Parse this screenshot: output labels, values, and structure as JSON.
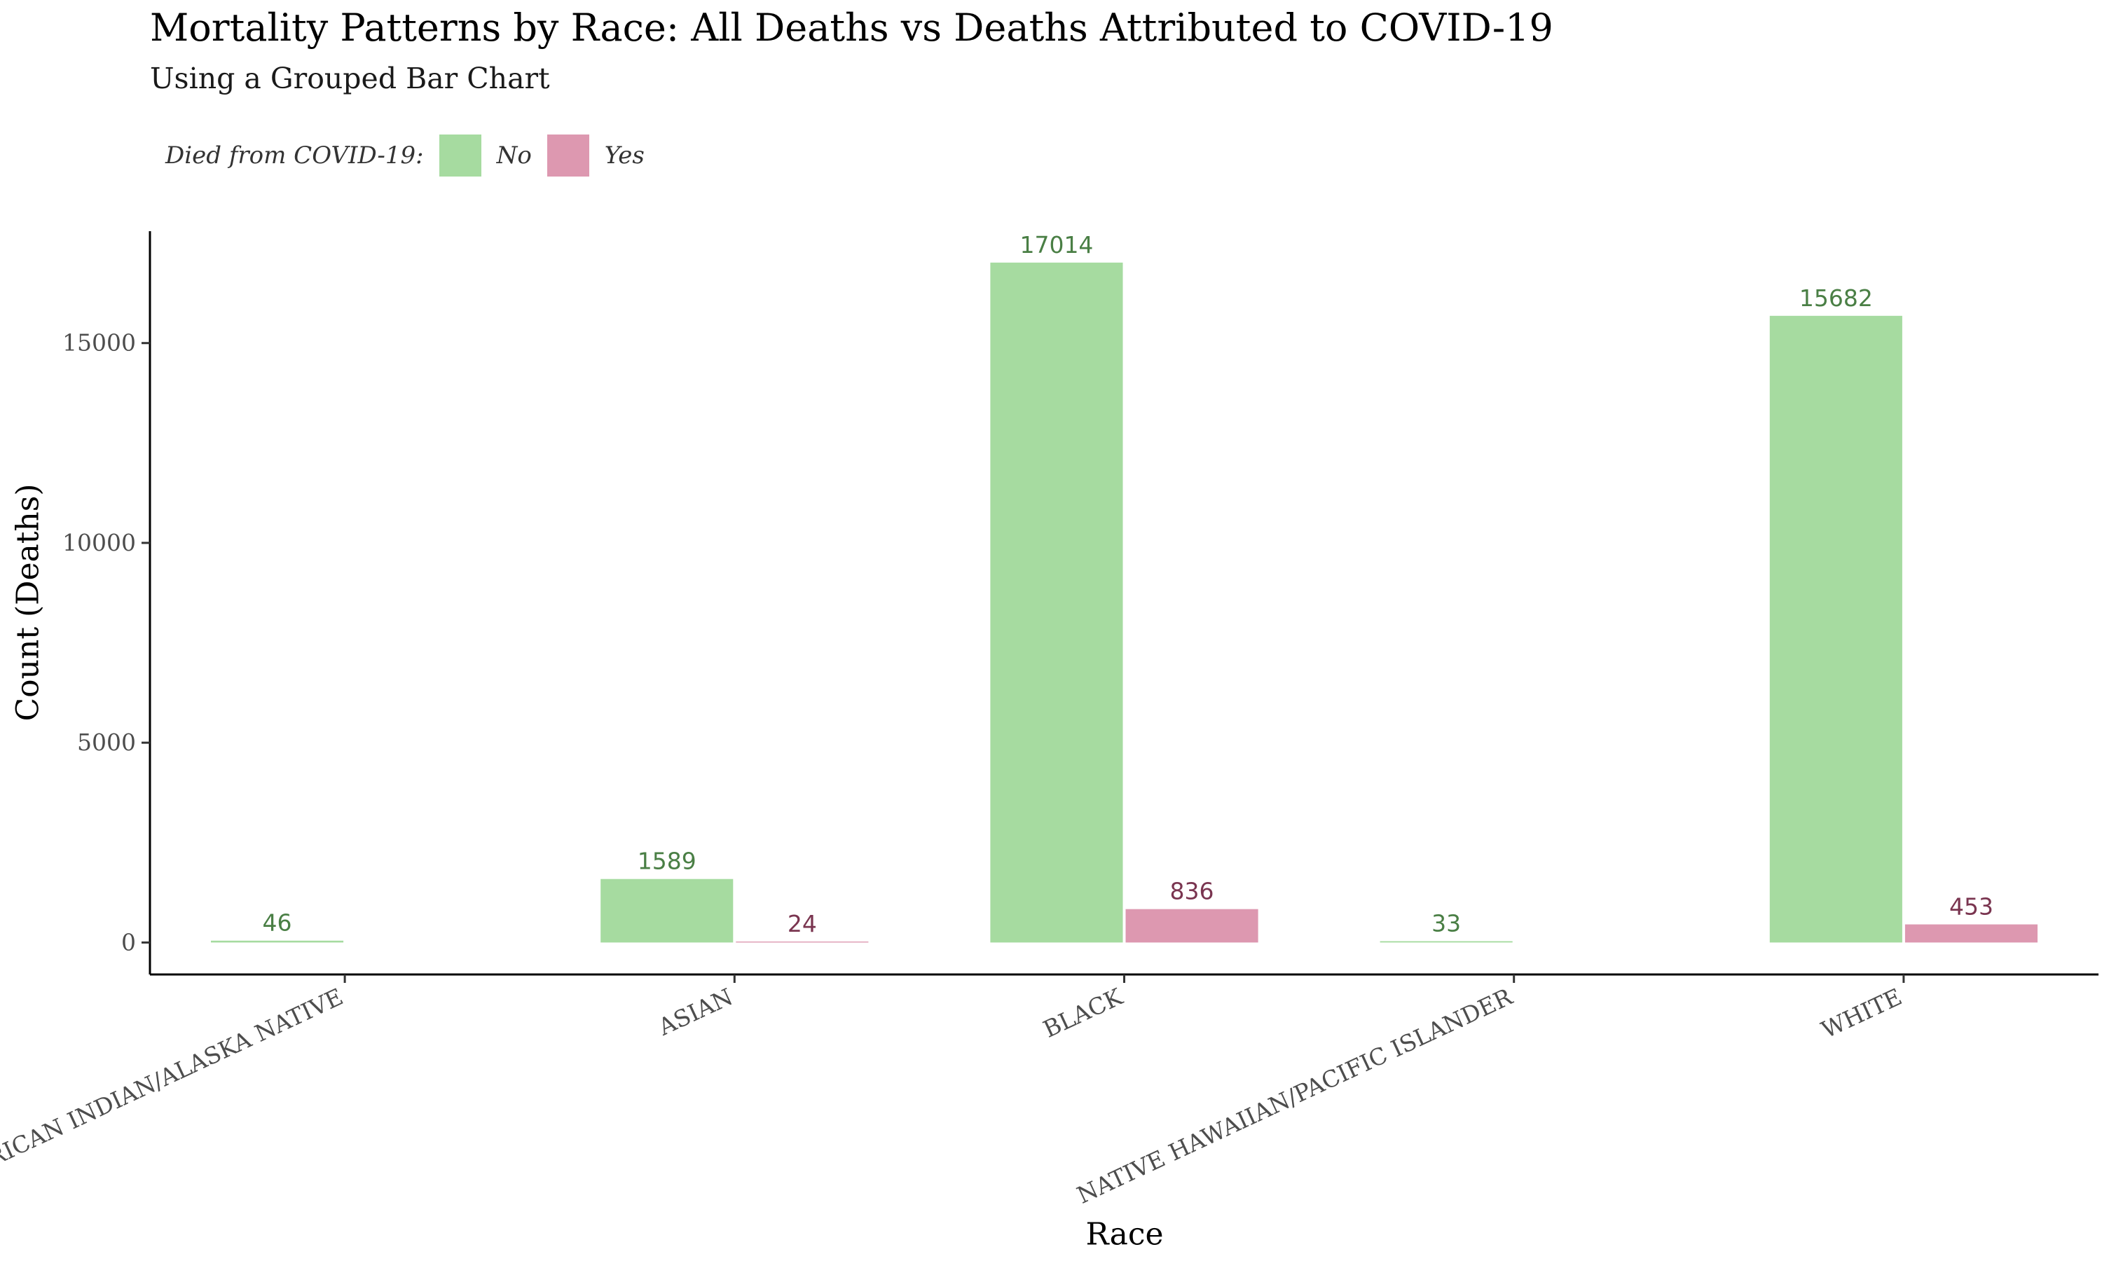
{
  "chart_data": {
    "type": "bar",
    "title": "Mortality Patterns by Race: All Deaths vs Deaths Attributed to COVID-19",
    "subtitle": "Using a Grouped Bar Chart",
    "xlabel": "Race",
    "ylabel": "Count (Deaths)",
    "legend_title": "Died from COVID-19:",
    "legend_position": "top-left",
    "categories": [
      "AMERICAN INDIAN/ALASKA NATIVE",
      "ASIAN",
      "BLACK",
      "NATIVE HAWAIIAN/PACIFIC ISLANDER",
      "WHITE"
    ],
    "series": [
      {
        "name": "No",
        "values": [
          46,
          1589,
          17014,
          33,
          15682
        ],
        "color": "#a6dba0",
        "label_color": "#4a7f45"
      },
      {
        "name": "Yes",
        "values": [
          0,
          24,
          836,
          0,
          453
        ],
        "color": "#dd98b0",
        "label_color": "#7a3550"
      }
    ],
    "yticks": [
      0,
      5000,
      10000,
      15000
    ],
    "ylim": [
      -800,
      17800
    ],
    "grid": false
  }
}
